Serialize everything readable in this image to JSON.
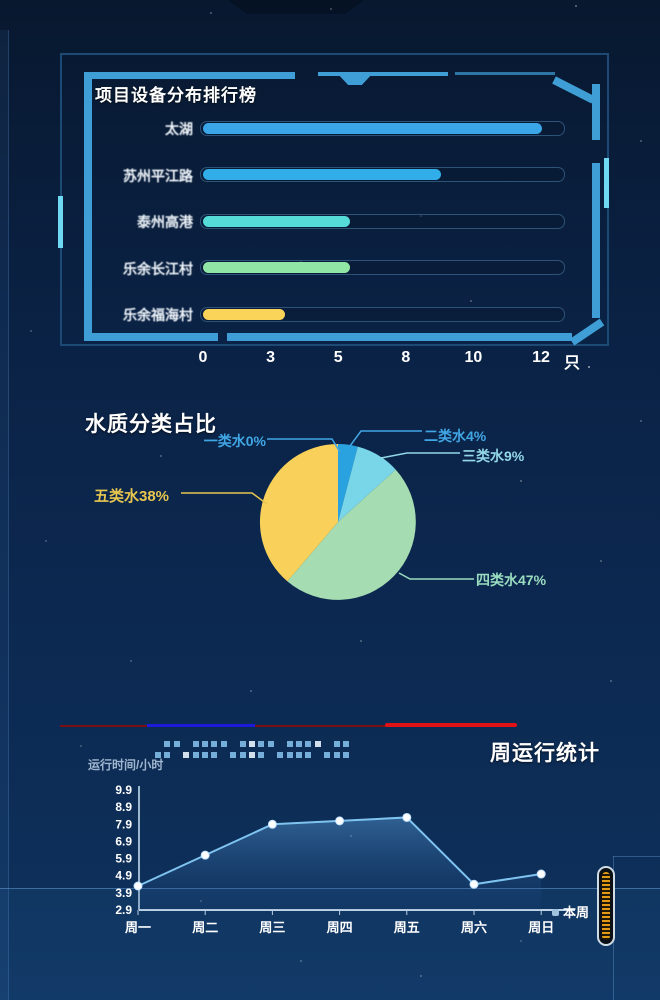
{
  "chart_data": [
    {
      "type": "bar",
      "orientation": "horizontal",
      "title": "项目设备分布排行榜",
      "unit": "只",
      "categories": [
        "太湖",
        "苏州平江路",
        "泰州高港",
        "乐余长江村",
        "乐余福海村"
      ],
      "values": [
        12,
        9,
        5.5,
        5.5,
        3.4
      ],
      "colors": [
        "#3aa6e8",
        "#31aeea",
        "#55dcd9",
        "#90e6a5",
        "#fad359"
      ],
      "x_ticks": [
        0,
        3,
        5,
        8,
        10,
        12
      ]
    },
    {
      "type": "pie",
      "title": "水质分类占比",
      "labels": [
        "一类水",
        "二类水",
        "三类水",
        "四类水",
        "五类水"
      ],
      "values": [
        0,
        4,
        9,
        47,
        38
      ],
      "unit": "%",
      "display_labels": [
        "一类水0%",
        "二类水4%",
        "三类水9%",
        "四类水47%",
        "五类水38%"
      ],
      "slice_colors": [
        "#3aa0e0",
        "#2aa2df",
        "#78d6e8",
        "#a5dcb1",
        "#f9d15a"
      ],
      "label_colors": [
        "#41a6e4",
        "#41a6e4",
        "#93d8e8",
        "#9adcc0",
        "#e7c64f"
      ]
    },
    {
      "type": "line",
      "title": "周运行统计",
      "ylabel": "运行时间/小时",
      "legend": [
        "本周"
      ],
      "categories": [
        "周一",
        "周二",
        "周三",
        "周四",
        "周五",
        "周六",
        "周日"
      ],
      "values": [
        4.3,
        6.1,
        7.9,
        8.1,
        8.3,
        4.4,
        5.0
      ],
      "y_ticks": [
        2.9,
        3.9,
        4.9,
        5.9,
        6.9,
        7.9,
        8.9,
        9.9
      ],
      "line_color": "#7fc4f0"
    }
  ]
}
